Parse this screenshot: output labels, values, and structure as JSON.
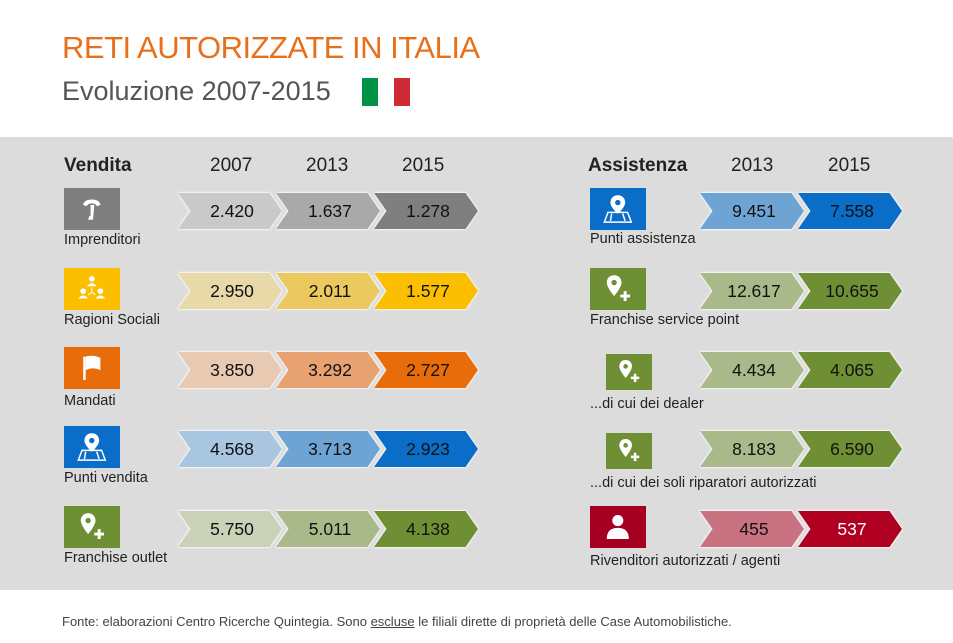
{
  "title": "RETI AUTORIZZATE IN ITALIA",
  "subtitle": "Evoluzione 2007-2015",
  "flag_colors": [
    "#009246",
    "#ffffff",
    "#ce2b37"
  ],
  "vendita": {
    "heading": "Vendita",
    "years": [
      "2007",
      "2013",
      "2015"
    ],
    "rows": [
      {
        "label": "Imprenditori",
        "icon": "telephone-handset-icon",
        "icon_color": "#7f7f7f",
        "values": [
          "2.420",
          "1.637",
          "1.278"
        ],
        "colors": [
          "#c9c9c9",
          "#a9a9a9",
          "#7f7f7f"
        ]
      },
      {
        "label": "Ragioni Sociali",
        "icon": "organization-people-icon",
        "icon_color": "#fbbf00",
        "values": [
          "2.950",
          "2.011",
          "1.577"
        ],
        "colors": [
          "#e8d9a8",
          "#ecc95e",
          "#fbbf00"
        ]
      },
      {
        "label": "Mandati",
        "icon": "flag-icon",
        "icon_color": "#e86c0a",
        "values": [
          "3.850",
          "3.292",
          "2.727"
        ],
        "colors": [
          "#e8cab2",
          "#e8a272",
          "#e86c0a"
        ]
      },
      {
        "label": "Punti vendita",
        "icon": "map-pin-icon",
        "icon_color": "#0a6ec8",
        "values": [
          "4.568",
          "3.713",
          "2.923"
        ],
        "colors": [
          "#a9c6e0",
          "#6ea4d4",
          "#0a6ec8"
        ]
      },
      {
        "label": "Franchise outlet",
        "icon": "pin-plus-icon",
        "icon_color": "#6f8f34",
        "values": [
          "5.750",
          "5.011",
          "4.138"
        ],
        "colors": [
          "#c9d2b6",
          "#a9b98a",
          "#6f8f34"
        ]
      }
    ]
  },
  "assistenza": {
    "heading": "Assistenza",
    "years": [
      "2013",
      "2015"
    ],
    "rows": [
      {
        "label": "Punti assistenza",
        "icon": "map-pin-icon",
        "icon_color": "#0a6ec8",
        "values": [
          "9.451",
          "7.558"
        ],
        "colors": [
          "#6ea4d4",
          "#0a6ec8"
        ]
      },
      {
        "label": "Franchise service point",
        "icon": "pin-plus-icon",
        "icon_color": "#6f8f34",
        "values": [
          "12.617",
          "10.655"
        ],
        "colors": [
          "#a9b98a",
          "#6f8f34"
        ]
      },
      {
        "label": "...di cui dei dealer",
        "icon": "pin-plus-icon",
        "icon_color": "#6f8f34",
        "values": [
          "4.434",
          "4.065"
        ],
        "colors": [
          "#a9b98a",
          "#6f8f34"
        ]
      },
      {
        "label": "...di cui dei soli riparatori autorizzati",
        "icon": "pin-plus-icon",
        "icon_color": "#6f8f34",
        "values": [
          "8.183",
          "6.590"
        ],
        "colors": [
          "#a9b98a",
          "#6f8f34"
        ]
      },
      {
        "label": "Rivenditori autorizzati / agenti",
        "icon": "person-icon",
        "icon_color": "#a50021",
        "values": [
          "455",
          "537"
        ],
        "colors": [
          "#c87282",
          "#b00022"
        ]
      }
    ]
  },
  "footer": {
    "before": "Fonte: elaborazioni Centro Ricerche Quintegia. Sono ",
    "underlined": "escluse",
    "after": " le filiali dirette di proprietà delle Case Automobilistiche."
  }
}
